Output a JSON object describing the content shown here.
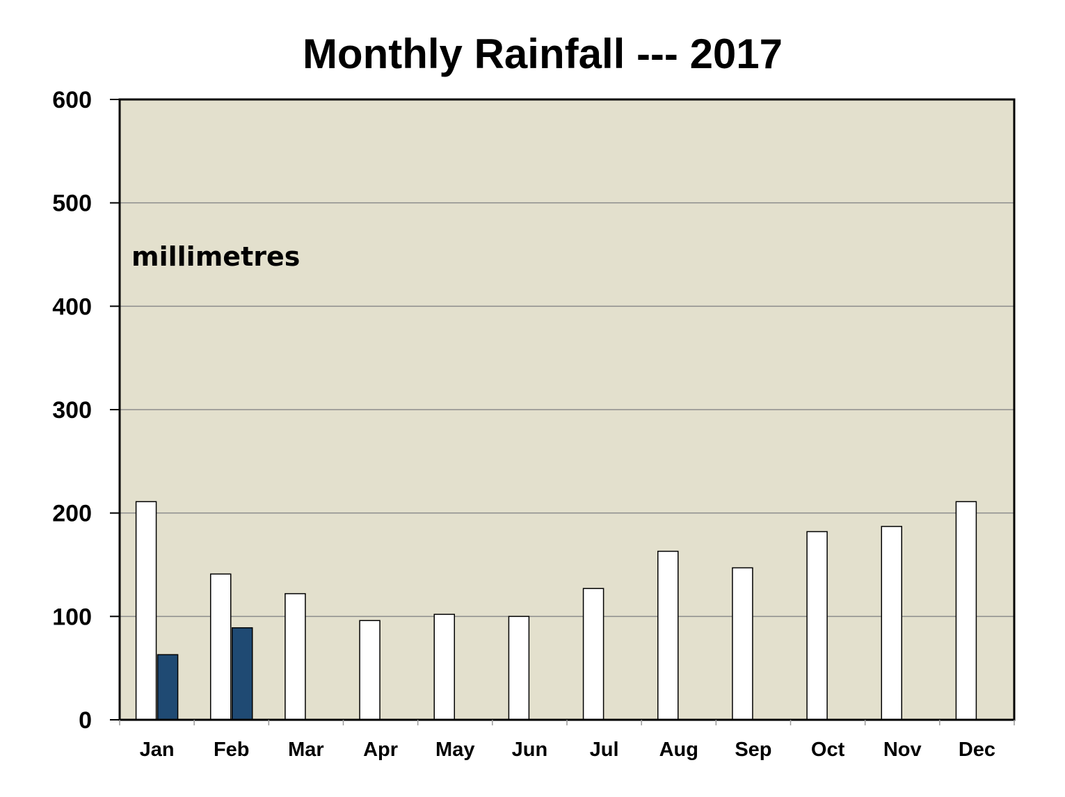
{
  "chart_data": {
    "type": "bar",
    "title": "Monthly Rainfall --- 2017",
    "annotation": "millimetres",
    "categories": [
      "Jan",
      "Feb",
      "Mar",
      "Apr",
      "May",
      "Jun",
      "Jul",
      "Aug",
      "Sep",
      "Oct",
      "Nov",
      "Dec"
    ],
    "series": [
      {
        "values": [
          211,
          141,
          122,
          96,
          102,
          100,
          127,
          163,
          147,
          182,
          187,
          211
        ],
        "color": "#ffffff"
      },
      {
        "values": [
          63,
          89,
          null,
          null,
          null,
          null,
          null,
          null,
          null,
          null,
          null,
          null
        ],
        "color": "#1f4a73"
      }
    ],
    "ylim": [
      0,
      600
    ],
    "yticks": [
      0,
      100,
      200,
      300,
      400,
      500,
      600
    ],
    "grid": true,
    "plot_background": "#e3e0cd",
    "legend": "none"
  }
}
